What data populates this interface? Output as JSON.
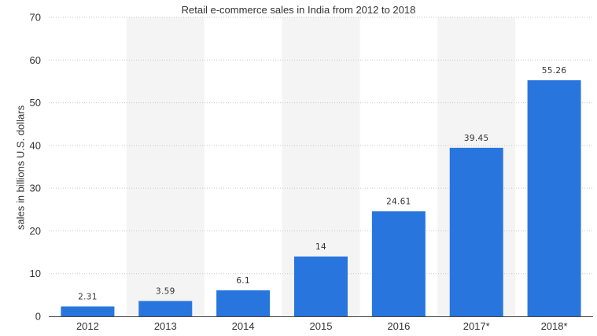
{
  "chart_data": {
    "type": "bar",
    "title": "Retail e-commerce sales in India from 2012 to 2018",
    "xlabel": "",
    "ylabel": "sales in billions U.S. dollars",
    "categories": [
      "2012",
      "2013",
      "2014",
      "2015",
      "2016",
      "2017*",
      "2018*"
    ],
    "values": [
      2.31,
      3.59,
      6.1,
      14,
      24.61,
      39.45,
      55.26
    ],
    "value_labels": [
      "2.31",
      "3.59",
      "6.1",
      "14",
      "24.61",
      "39.45",
      "55.26"
    ],
    "ylim": [
      0,
      70
    ],
    "yticks": [
      0,
      10,
      20,
      30,
      40,
      50,
      60,
      70
    ],
    "grid": true,
    "bar_color": "#2876dd",
    "band_color": "#f4f4f4"
  }
}
